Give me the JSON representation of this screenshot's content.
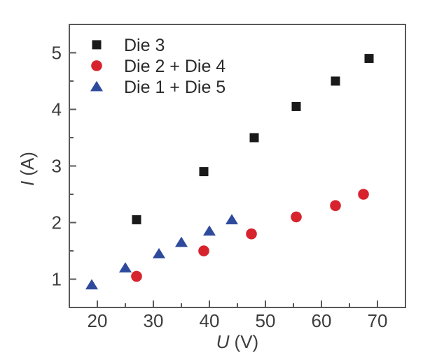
{
  "chart_data": {
    "type": "scatter",
    "title": "",
    "xlabel": "U (V)",
    "ylabel": "I (A)",
    "xlabel_parts": {
      "variable": "U",
      "unit": "(V)"
    },
    "ylabel_parts": {
      "variable": "I",
      "unit": "(A)"
    },
    "xlim": [
      15,
      75
    ],
    "ylim": [
      0.5,
      5.5
    ],
    "x_major_ticks": [
      20,
      30,
      40,
      50,
      60,
      70
    ],
    "x_minor_ticks": [
      25,
      35,
      45,
      55,
      65
    ],
    "y_major_ticks": [
      1,
      2,
      3,
      4,
      5
    ],
    "y_minor_ticks": [
      1.5,
      2.5,
      3.5,
      4.5
    ],
    "grid": false,
    "legend_position": "top-left-inside",
    "series": [
      {
        "name": "Die 3",
        "marker": "square",
        "color": "#1a1a1a",
        "points": [
          [
            27,
            2.05
          ],
          [
            39,
            2.9
          ],
          [
            48,
            3.5
          ],
          [
            55.5,
            4.05
          ],
          [
            62.5,
            4.5
          ],
          [
            68.5,
            4.9
          ]
        ]
      },
      {
        "name": "Die 2 + Die 4",
        "marker": "circle",
        "color": "#d6232e",
        "points": [
          [
            27,
            1.05
          ],
          [
            39,
            1.5
          ],
          [
            47.5,
            1.8
          ],
          [
            55.5,
            2.1
          ],
          [
            62.5,
            2.3
          ],
          [
            67.5,
            2.5
          ]
        ]
      },
      {
        "name": "Die 1 + Die 5",
        "marker": "triangle",
        "color": "#2e4a9c",
        "points": [
          [
            19,
            0.9
          ],
          [
            25,
            1.2
          ],
          [
            31,
            1.45
          ],
          [
            35,
            1.65
          ],
          [
            40,
            1.85
          ],
          [
            44,
            2.05
          ]
        ]
      }
    ]
  },
  "style": {
    "background": "#ffffff",
    "axis_color": "#595959",
    "tick_label_color": "#3d3d3d",
    "legend_text_color": "#2b2b2b"
  }
}
